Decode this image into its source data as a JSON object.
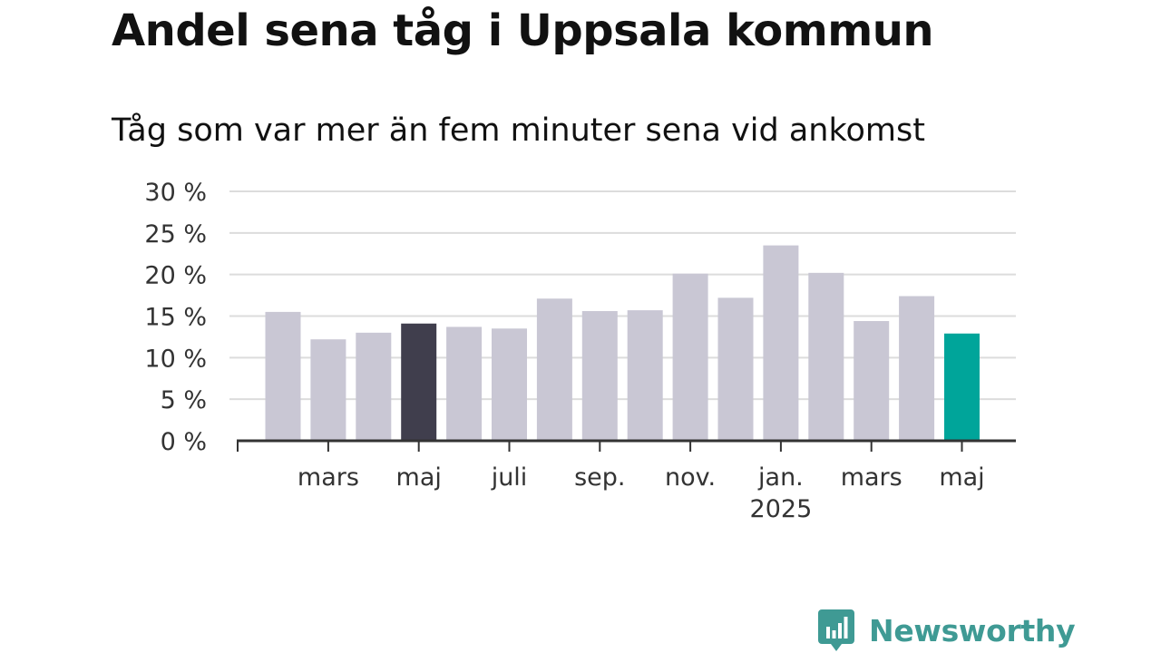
{
  "title": "Andel sena tåg i Uppsala kommun",
  "subtitle": "Tåg som var mer än fem minuter sena vid ankomst",
  "brand": "Newsworthy",
  "logo_icon": "newsworthy-chart-bubble-icon",
  "colors": {
    "bar_default": "#c9c7d4",
    "bar_highlight_dark": "#403e4d",
    "bar_highlight_latest": "#00a59a",
    "grid": "#dcdcdc",
    "axis": "#333333",
    "brand": "#3f9a94"
  },
  "chart_data": {
    "type": "bar",
    "title": "Andel sena tåg i Uppsala kommun",
    "subtitle": "Tåg som var mer än fem minuter sena vid ankomst",
    "unit": "%",
    "x": [
      "2024-02",
      "2024-03",
      "2024-04",
      "2024-05",
      "2024-06",
      "2024-07",
      "2024-08",
      "2024-09",
      "2024-10",
      "2024-11",
      "2024-12",
      "2025-01",
      "2025-02",
      "2025-03",
      "2025-04",
      "2025-05"
    ],
    "values": [
      15.5,
      12.2,
      13.0,
      14.1,
      13.7,
      13.5,
      17.1,
      15.6,
      15.7,
      20.1,
      17.2,
      23.5,
      20.2,
      14.4,
      17.4,
      12.9
    ],
    "highlight": {
      "2024-05": "bar_highlight_dark",
      "2025-05": "bar_highlight_latest"
    },
    "xtick_labels": [
      {
        "x": "2024-03",
        "label": "mars"
      },
      {
        "x": "2024-05",
        "label": "maj"
      },
      {
        "x": "2024-07",
        "label": "juli"
      },
      {
        "x": "2024-09",
        "label": "sep."
      },
      {
        "x": "2024-11",
        "label": "nov."
      },
      {
        "x": "2025-01",
        "label": "jan.",
        "sublabel": "2025"
      },
      {
        "x": "2025-03",
        "label": "mars"
      },
      {
        "x": "2025-05",
        "label": "maj"
      }
    ],
    "yticks": [
      0,
      5,
      10,
      15,
      20,
      25,
      30
    ],
    "ytick_labels": [
      "0 %",
      "5 %",
      "10 %",
      "15 %",
      "20 %",
      "25 %",
      "30 %"
    ],
    "ylim": [
      0,
      30
    ],
    "grid": true,
    "legend": "none"
  }
}
